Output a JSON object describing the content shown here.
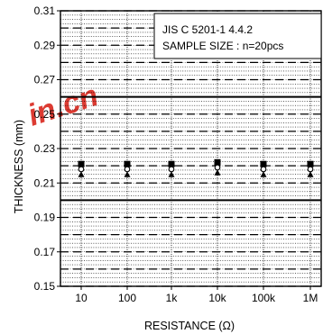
{
  "chart_data": {
    "type": "scatter",
    "title": "",
    "xlabel": "RESISTANCE (Ω)",
    "ylabel": "THICKNESS (mm)",
    "x_categories": [
      "10",
      "100",
      "1k",
      "10k",
      "100k",
      "1M"
    ],
    "ylim": [
      0.15,
      0.31
    ],
    "y_ticks": [
      0.15,
      0.17,
      0.19,
      0.21,
      0.23,
      0.25,
      0.27,
      0.29,
      0.31
    ],
    "y_tick_labels": [
      "0.15",
      "0.17",
      "0.19",
      "0.21",
      "0.23",
      "0.25",
      "0.27",
      "0.29",
      "0.31"
    ],
    "grid": true,
    "annotation": [
      "JIS C 5201-1 4.4.2",
      "SAMPLE SIZE : n=20pcs"
    ],
    "limit_lines": [
      0.2,
      0.26
    ],
    "series": [
      {
        "marker": "square",
        "values": [
          0.221,
          0.221,
          0.221,
          0.222,
          0.221,
          0.221
        ]
      },
      {
        "marker": "circle",
        "values": [
          0.218,
          0.218,
          0.218,
          0.219,
          0.218,
          0.218
        ]
      },
      {
        "marker": "triangle",
        "values": [
          0.215,
          0.215,
          0.215,
          0.216,
          0.215,
          0.215
        ]
      }
    ],
    "colors": {
      "axis": "#000000",
      "grid": "#000000",
      "watermark": "#d9261c"
    }
  },
  "watermark": {
    "text": "in.cn"
  }
}
